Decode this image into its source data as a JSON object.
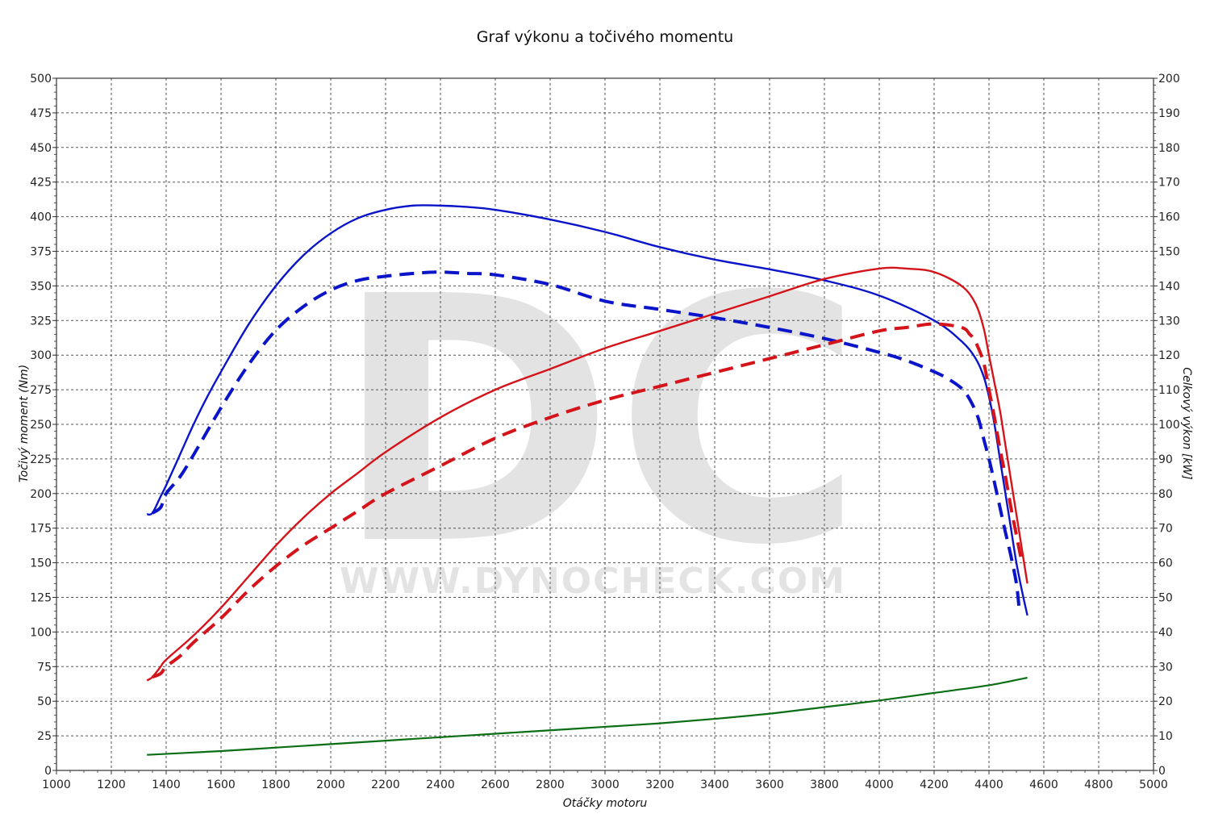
{
  "chart_data": {
    "type": "line",
    "title": "Graf výkonu a točivého momentu",
    "xlabel": "Otáčky motoru",
    "ylabel_left": "Točivý moment (Nm)",
    "ylabel_right": "Celkový výkon [kW]",
    "xlim": [
      1000,
      5000
    ],
    "ylim_left": [
      0,
      500
    ],
    "ylim_right": [
      0,
      200
    ],
    "x_ticks": [
      1000,
      1200,
      1400,
      1600,
      1800,
      2000,
      2200,
      2400,
      2600,
      2800,
      3000,
      3200,
      3400,
      3600,
      3800,
      4000,
      4200,
      4400,
      4600,
      4800,
      5000
    ],
    "y_left_ticks": [
      0,
      25,
      50,
      75,
      100,
      125,
      150,
      175,
      200,
      225,
      250,
      275,
      300,
      325,
      350,
      375,
      400,
      425,
      450,
      475,
      500
    ],
    "y_right_ticks": [
      0,
      10,
      20,
      30,
      40,
      50,
      60,
      70,
      80,
      90,
      100,
      110,
      120,
      130,
      140,
      150,
      160,
      170,
      180,
      190,
      200
    ],
    "grid": true,
    "watermark": {
      "logo": "DC",
      "url": "WWW.DYNOCHECK.COM"
    },
    "series": [
      {
        "axis": "left",
        "color": "#0a14c8",
        "style": "solid",
        "x": [
          1330,
          1350,
          1380,
          1400,
          1450,
          1500,
          1550,
          1600,
          1700,
          1800,
          1900,
          2000,
          2100,
          2200,
          2300,
          2400,
          2500,
          2600,
          2800,
          3000,
          3200,
          3400,
          3600,
          3800,
          4000,
          4200,
          4300,
          4350,
          4380,
          4400,
          4420,
          4440,
          4460,
          4480,
          4500,
          4520,
          4540
        ],
        "y": [
          185,
          186,
          198,
          206,
          228,
          250,
          270,
          288,
          322,
          350,
          372,
          388,
          399,
          405,
          408,
          408,
          407,
          405,
          398,
          389,
          378,
          369,
          362,
          354,
          343,
          325,
          310,
          298,
          285,
          270,
          250,
          225,
          200,
          175,
          150,
          130,
          112
        ]
      },
      {
        "axis": "left",
        "color": "#0a14c8",
        "style": "dashed",
        "x": [
          1350,
          1380,
          1400,
          1450,
          1500,
          1600,
          1700,
          1800,
          1900,
          2000,
          2100,
          2200,
          2300,
          2400,
          2500,
          2600,
          2800,
          3000,
          3200,
          3400,
          3600,
          3800,
          4000,
          4100,
          4200,
          4250,
          4300,
          4330,
          4360,
          4380,
          4400,
          4420,
          4440,
          4460,
          4480,
          4500,
          4510
        ],
        "y": [
          186,
          190,
          200,
          212,
          228,
          262,
          293,
          318,
          335,
          347,
          354,
          357,
          359,
          360,
          359,
          358,
          351,
          339,
          333,
          327,
          320,
          312,
          302,
          296,
          288,
          283,
          276,
          268,
          255,
          240,
          225,
          208,
          190,
          172,
          155,
          135,
          117
        ]
      },
      {
        "axis": "right",
        "color": "#d4141a",
        "style": "solid",
        "x": [
          1330,
          1350,
          1380,
          1400,
          1500,
          1600,
          1700,
          1800,
          1900,
          2000,
          2100,
          2200,
          2400,
          2600,
          2800,
          3000,
          3200,
          3400,
          3600,
          3800,
          4000,
          4100,
          4200,
          4300,
          4350,
          4380,
          4400,
          4420,
          4440,
          4460,
          4480,
          4500,
          4520,
          4540
        ],
        "y": [
          26,
          27,
          30,
          32,
          39,
          47,
          56,
          65,
          73,
          80,
          86,
          92,
          102,
          110,
          116,
          122,
          127,
          132,
          137,
          142,
          145,
          145,
          144,
          140,
          135,
          128,
          120,
          112,
          104,
          94,
          84,
          74,
          64,
          54
        ]
      },
      {
        "axis": "right",
        "color": "#d4141a",
        "style": "dashed",
        "x": [
          1350,
          1380,
          1400,
          1450,
          1500,
          1600,
          1700,
          1800,
          1900,
          2000,
          2100,
          2200,
          2400,
          2600,
          2800,
          3000,
          3200,
          3400,
          3600,
          3800,
          4000,
          4100,
          4200,
          4300,
          4330,
          4350,
          4380,
          4400,
          4420,
          4440,
          4460,
          4480,
          4500,
          4520
        ],
        "y": [
          27,
          28,
          30,
          33,
          37,
          44,
          52,
          59,
          65,
          70,
          75,
          80,
          88,
          96,
          102,
          107,
          111,
          115,
          119,
          123,
          127,
          128,
          129,
          128,
          126,
          124,
          118,
          110,
          102,
          93,
          85,
          76,
          68,
          60
        ]
      },
      {
        "axis": "right",
        "color": "#0a6e14",
        "style": "solid",
        "x": [
          1330,
          1600,
          1800,
          2000,
          2200,
          2400,
          2600,
          2800,
          3000,
          3200,
          3400,
          3600,
          3800,
          4000,
          4200,
          4400,
          4540
        ],
        "y": [
          4.5,
          5.6,
          6.6,
          7.6,
          8.6,
          9.6,
          10.6,
          11.6,
          12.6,
          13.6,
          14.9,
          16.4,
          18.3,
          20.2,
          22.4,
          24.6,
          26.8
        ]
      }
    ]
  }
}
